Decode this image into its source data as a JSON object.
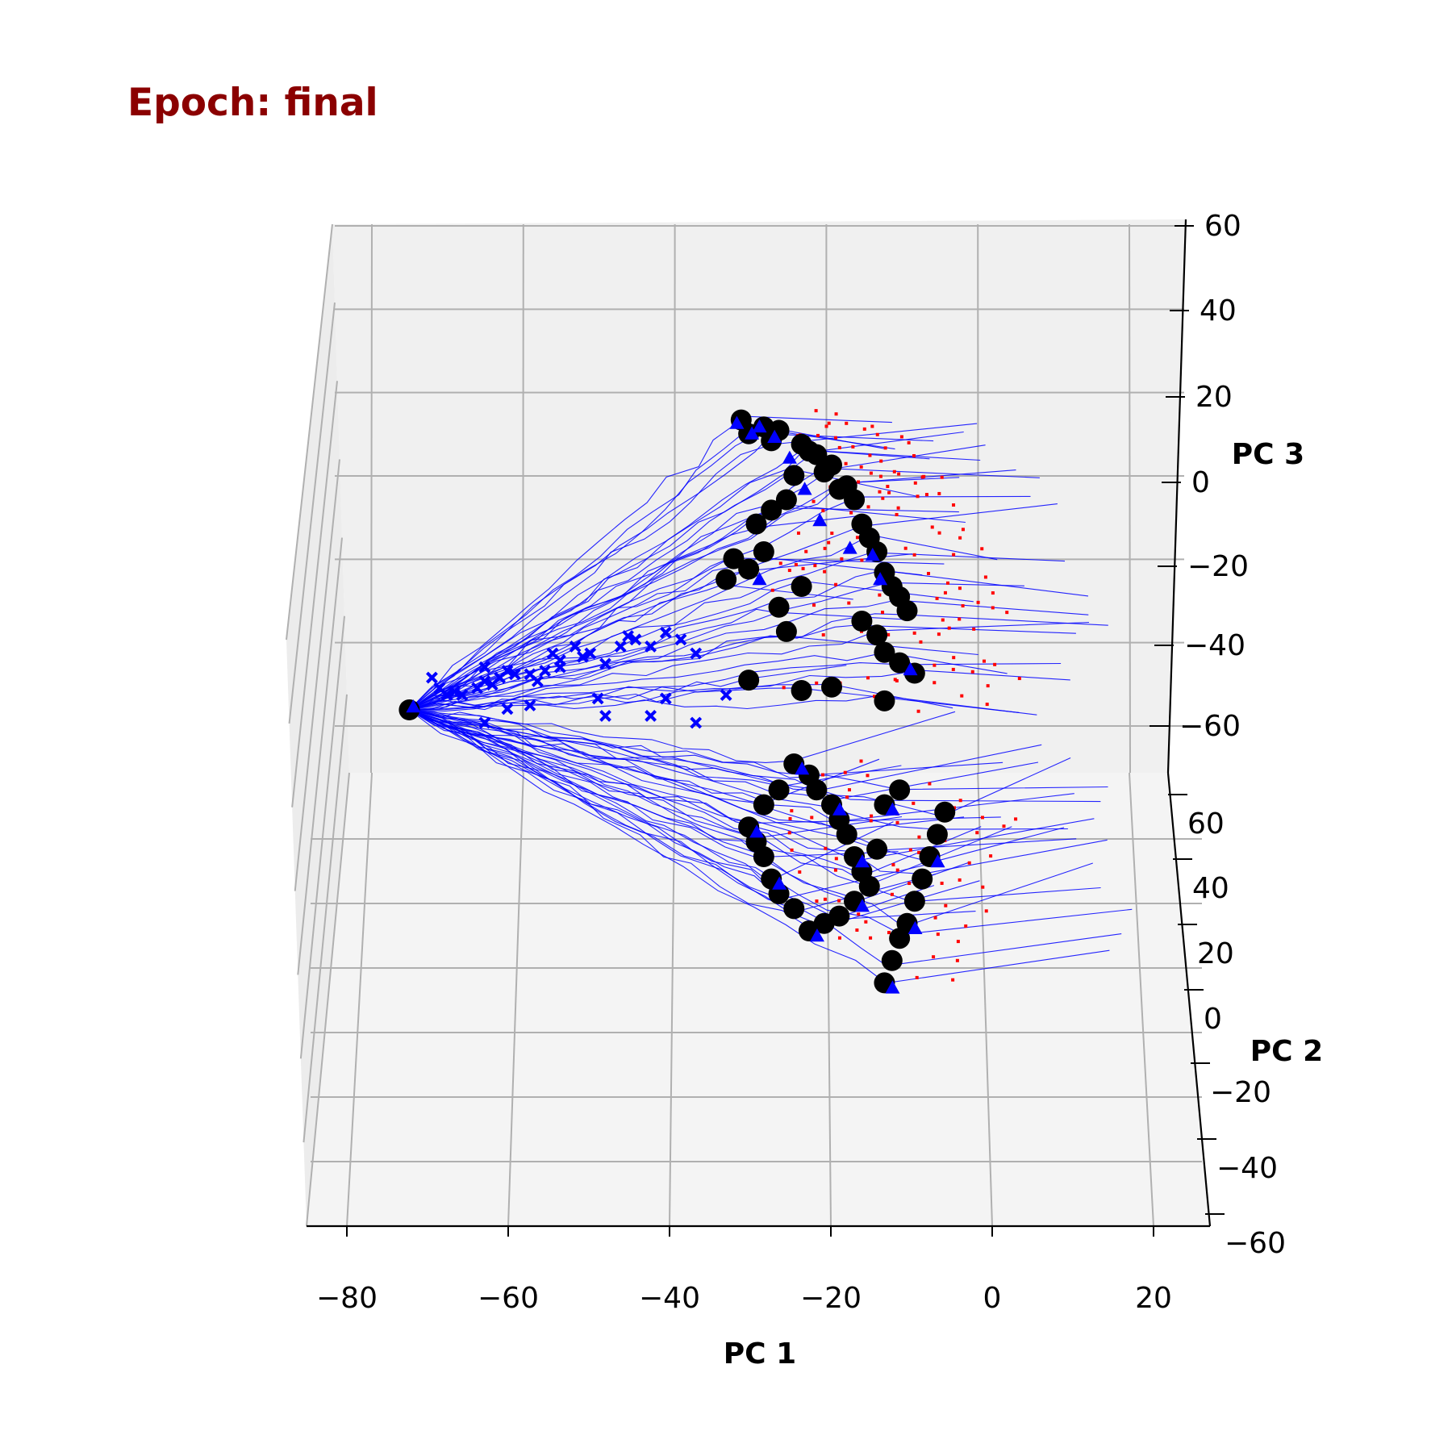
{
  "chart_data": {
    "type": "scatter",
    "projection": "3d",
    "title": "Epoch: final",
    "title_color": "#8b0000",
    "xlabel": "PC 1",
    "ylabel": "PC 2",
    "zlabel": "PC 3",
    "xlim": [
      -85,
      27
    ],
    "ylim": [
      -60,
      70
    ],
    "zlim": [
      -72,
      60
    ],
    "xticks": [
      "−80",
      "−60",
      "−40",
      "−20",
      "0",
      "20"
    ],
    "yticks": [
      "−60",
      "−40",
      "−20",
      "0",
      "20",
      "40",
      "60"
    ],
    "zticks": [
      "−60",
      "−40",
      "−20",
      "0",
      "20",
      "40",
      "60"
    ],
    "grid": true,
    "pane_color": "#f2f2f2",
    "grid_color": "#b0b0b0",
    "colors": {
      "trajectory": "#0000ff",
      "start_marker": "#0000ff",
      "triangle_marker": "#0000ff",
      "circle_marker": "#000000",
      "dotted_trail": "#ff0000"
    },
    "series": [
      {
        "marker": "x",
        "points": [
          [
            -73,
            -47
          ],
          [
            -72,
            -50
          ],
          [
            -71,
            -52
          ],
          [
            -70,
            -51
          ],
          [
            -69,
            -52
          ],
          [
            -67,
            -50
          ],
          [
            -66,
            -48
          ],
          [
            -65,
            -49
          ],
          [
            -66,
            -44
          ],
          [
            -64,
            -47
          ],
          [
            -63,
            -45
          ],
          [
            -62,
            -46
          ],
          [
            -60,
            -46
          ],
          [
            -59,
            -48
          ],
          [
            -58,
            -45
          ],
          [
            -57,
            -40
          ],
          [
            -56,
            -42
          ],
          [
            -54,
            -38
          ],
          [
            -53,
            -41
          ],
          [
            -52,
            -40
          ],
          [
            -50,
            -43
          ],
          [
            -48,
            -38
          ],
          [
            -47,
            -35
          ],
          [
            -46,
            -36
          ],
          [
            -44,
            -38
          ],
          [
            -42,
            -34
          ],
          [
            -40,
            -36
          ],
          [
            -38,
            -40
          ],
          [
            -56,
            -44
          ],
          [
            -60,
            -55
          ],
          [
            -50,
            -58
          ],
          [
            -44,
            -58
          ],
          [
            -38,
            -60
          ],
          [
            -63,
            -56
          ],
          [
            -51,
            -53
          ],
          [
            -42,
            -53
          ],
          [
            -34,
            -52
          ],
          [
            -66,
            -60
          ]
        ]
      },
      {
        "marker": "o",
        "points": [
          [
            -76,
            -48
          ],
          [
            -32,
            18
          ],
          [
            -31,
            14
          ],
          [
            -29,
            16
          ],
          [
            -28,
            12
          ],
          [
            -27,
            15
          ],
          [
            -24,
            11
          ],
          [
            -23,
            9
          ],
          [
            -22,
            8
          ],
          [
            -21,
            3
          ],
          [
            -20,
            5
          ],
          [
            -19,
            -2
          ],
          [
            -18,
            -1
          ],
          [
            -17,
            -5
          ],
          [
            -16,
            -12
          ],
          [
            -15,
            -16
          ],
          [
            -14,
            -20
          ],
          [
            -13,
            -26
          ],
          [
            -12,
            -30
          ],
          [
            -11,
            -33
          ],
          [
            -10,
            -37
          ],
          [
            -25,
            2
          ],
          [
            -26,
            -5
          ],
          [
            -28,
            -8
          ],
          [
            -30,
            -12
          ],
          [
            -29,
            -20
          ],
          [
            -31,
            -25
          ],
          [
            -33,
            -22
          ],
          [
            -34,
            -28
          ],
          [
            -27,
            -36
          ],
          [
            -24,
            -30
          ],
          [
            -16,
            -40
          ],
          [
            -14,
            -44
          ],
          [
            -13,
            -49
          ],
          [
            -11,
            -52
          ],
          [
            -9,
            -55
          ],
          [
            -26,
            -43
          ],
          [
            -31,
            -57
          ],
          [
            -24,
            -60
          ],
          [
            -20,
            -59
          ],
          [
            -13,
            -63
          ]
        ],
        "note_hidden": ""
      },
      {
        "marker": "o_lower",
        "pc2": [
          [
            -25,
            55
          ],
          [
            -23,
            52
          ],
          [
            -22,
            48
          ],
          [
            -20,
            44
          ],
          [
            -19,
            40
          ],
          [
            -18,
            36
          ],
          [
            -17,
            30
          ],
          [
            -16,
            26
          ],
          [
            -15,
            22
          ],
          [
            -17,
            18
          ],
          [
            -19,
            14
          ],
          [
            -21,
            12
          ],
          [
            -23,
            10
          ],
          [
            -25,
            16
          ],
          [
            -27,
            20
          ],
          [
            -28,
            24
          ],
          [
            -29,
            30
          ],
          [
            -30,
            34
          ],
          [
            -31,
            38
          ],
          [
            -29,
            44
          ],
          [
            -27,
            48
          ],
          [
            -13,
            -4
          ],
          [
            -12,
            2
          ],
          [
            -11,
            8
          ],
          [
            -10,
            12
          ],
          [
            -9,
            18
          ],
          [
            -8,
            24
          ],
          [
            -7,
            30
          ],
          [
            -6,
            36
          ],
          [
            -5,
            42
          ],
          [
            -13,
            44
          ],
          [
            -11,
            48
          ],
          [
            -14,
            32
          ]
        ]
      },
      {
        "marker": "^",
        "points": [
          [
            -75,
            -47
          ],
          [
            -33,
            18
          ],
          [
            -31,
            15
          ],
          [
            -30,
            17
          ],
          [
            -28,
            14
          ],
          [
            -26,
            8
          ],
          [
            -24,
            -1
          ],
          [
            -22,
            -10
          ],
          [
            -18,
            -18
          ],
          [
            -15,
            -20
          ],
          [
            -14,
            -27
          ],
          [
            -30,
            -27
          ],
          [
            -10,
            -53
          ]
        ]
      }
    ]
  }
}
